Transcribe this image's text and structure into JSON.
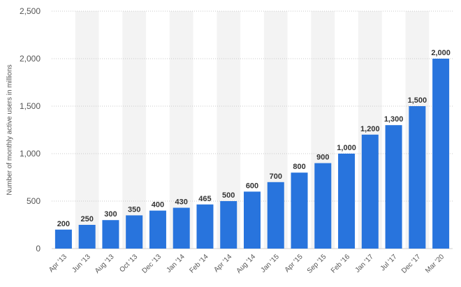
{
  "chart_data": {
    "type": "bar",
    "title": "",
    "xlabel": "",
    "ylabel": "Number of monthly active users in millions",
    "categories": [
      "Apr '13",
      "Jun '13",
      "Aug '13",
      "Oct '13",
      "Dec '13",
      "Jan '14",
      "Feb '14",
      "Apr '14",
      "Aug '14",
      "Jan '15",
      "Apr '15",
      "Sep '15",
      "Feb '16",
      "Jan '17",
      "Jul '17",
      "Dec '17",
      "Mar '20"
    ],
    "values": [
      200,
      250,
      300,
      350,
      400,
      430,
      465,
      500,
      600,
      700,
      800,
      900,
      1000,
      1200,
      1300,
      1500,
      2000
    ],
    "value_labels": [
      "200",
      "250",
      "300",
      "350",
      "400",
      "430",
      "465",
      "500",
      "600",
      "700",
      "800",
      "900",
      "1,000",
      "1,200",
      "1,300",
      "1,500",
      "2,000"
    ],
    "ylim": [
      0,
      2500
    ],
    "yticks": [
      0,
      500,
      1000,
      1500,
      2000,
      2500
    ],
    "ytick_labels": [
      "0",
      "500",
      "1,000",
      "1,500",
      "2,000",
      "2,500"
    ],
    "grid": true,
    "bar_color": "#2874dd",
    "band_color": "#f3f3f3"
  }
}
